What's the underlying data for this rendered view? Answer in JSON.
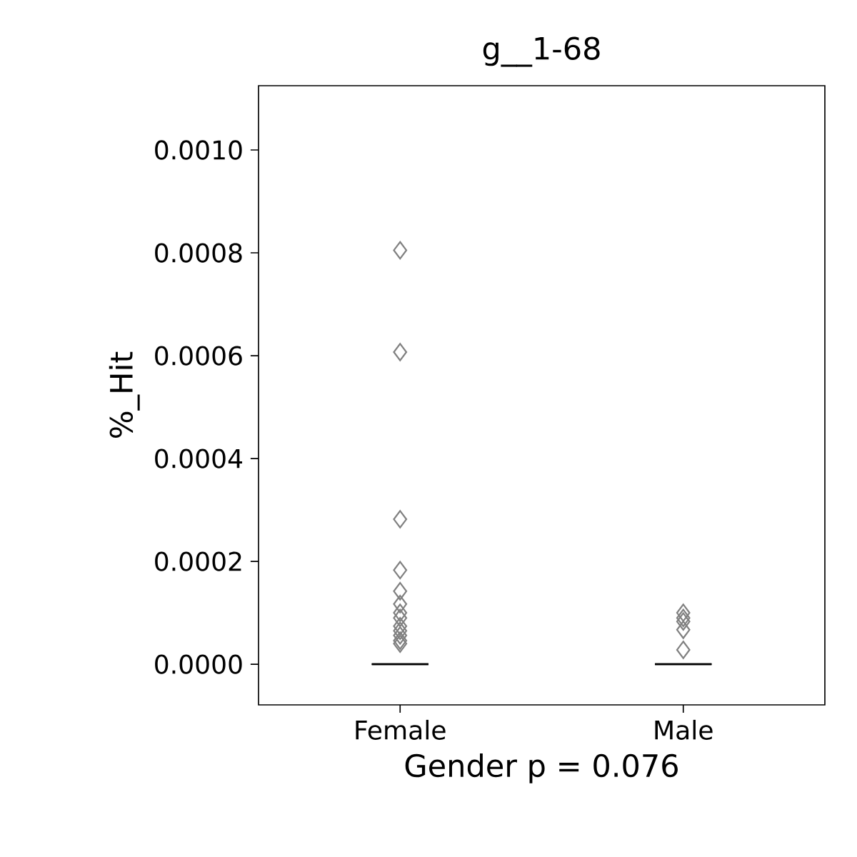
{
  "chart_data": {
    "type": "scatter",
    "title": "g__1-68",
    "xlabel": "Gender p = 0.076",
    "ylabel": "%_Hit",
    "categories": [
      "Female",
      "Male"
    ],
    "series": [
      {
        "color": "#808080",
        "x": [
          "Female",
          "Female",
          "Female",
          "Female",
          "Female",
          "Female",
          "Female",
          "Female",
          "Female",
          "Female",
          "Female",
          "Female",
          "Female",
          "Male",
          "Male",
          "Male",
          "Male",
          "Male"
        ],
        "values": [
          0.000805,
          0.000607,
          0.000282,
          0.000183,
          0.000142,
          0.000117,
          0.0001,
          9e-05,
          7.4e-05,
          6.5e-05,
          5.6e-05,
          4.6e-05,
          4e-05,
          0.0001,
          9e-05,
          8.3e-05,
          6.7e-05,
          2.8e-05
        ]
      },
      {
        "type": "box",
        "color": "#000000",
        "boxes": [
          {
            "low": 0,
            "q1": 0,
            "median": 0,
            "q3": 0,
            "high": 0
          },
          {
            "low": 0,
            "q1": 0,
            "median": 0,
            "q3": 0,
            "high": 0
          }
        ]
      }
    ],
    "marker": "diamond",
    "grid": false,
    "ylim": [
      -7.9e-05,
      0.001125
    ],
    "yticks": [
      {
        "value": 0,
        "label": "0.0000"
      },
      {
        "value": 0.0002,
        "label": "0.0002"
      },
      {
        "value": 0.0004,
        "label": "0.0004"
      },
      {
        "value": 0.0006,
        "label": "0.0006"
      },
      {
        "value": 0.0008,
        "label": "0.0008"
      },
      {
        "value": 0.001,
        "label": "0.0010"
      }
    ]
  }
}
